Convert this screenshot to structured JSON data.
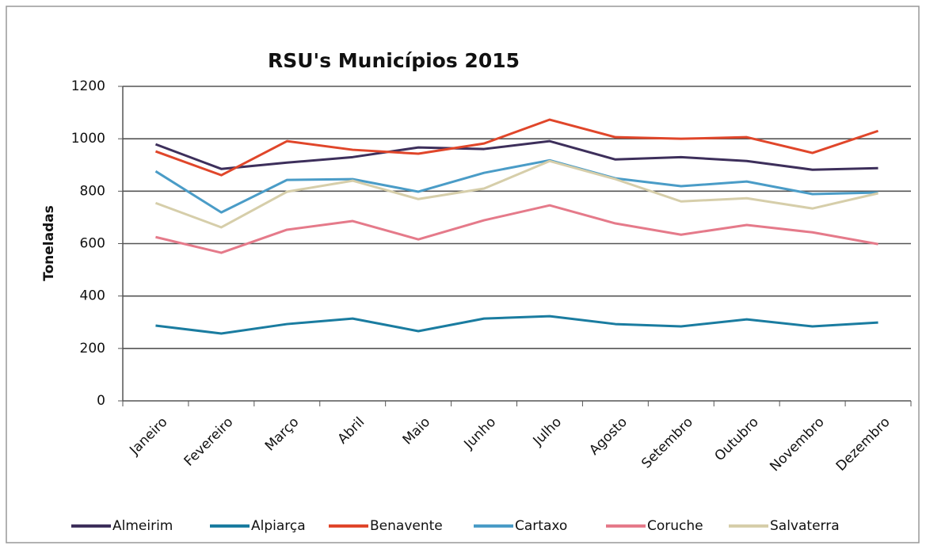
{
  "chart_data": {
    "type": "line",
    "title": "RSU's  Municípios 2015",
    "y_label": "Toneladas",
    "categories": [
      "Janeiro",
      "Fevereiro",
      "Março",
      "Abril",
      "Maio",
      "Junho",
      "Julho",
      "Agosto",
      "Setembro",
      "Outubro",
      "Novembro",
      "Dezembro"
    ],
    "series": [
      {
        "name": "Almeirim",
        "color": "#3d2f5b",
        "values": [
          979,
          885,
          909,
          930,
          967,
          961,
          991,
          921,
          930,
          915,
          882,
          888
        ]
      },
      {
        "name": "Alpiarça",
        "color": "#1a7ca0",
        "values": [
          287,
          257,
          293,
          314,
          266,
          314,
          323,
          293,
          284,
          311,
          284,
          299
        ]
      },
      {
        "name": "Benavente",
        "color": "#e0462a",
        "values": [
          952,
          861,
          991,
          958,
          943,
          982,
          1073,
          1006,
          1000,
          1006,
          946,
          1030
        ]
      },
      {
        "name": "Cartaxo",
        "color": "#4a9cc7",
        "values": [
          876,
          719,
          843,
          846,
          798,
          870,
          918,
          849,
          819,
          837,
          789,
          795
        ]
      },
      {
        "name": "Coruche",
        "color": "#e57a8a",
        "values": [
          625,
          565,
          653,
          686,
          616,
          689,
          746,
          677,
          634,
          671,
          643,
          598
        ]
      },
      {
        "name": "Salvaterra",
        "color": "#d6ceaa",
        "values": [
          755,
          662,
          798,
          840,
          770,
          810,
          915,
          846,
          761,
          773,
          734,
          792
        ]
      }
    ],
    "ylim": [
      0,
      1200
    ],
    "yticks": [
      0,
      200,
      400,
      600,
      800,
      1000,
      1200
    ],
    "grid": true,
    "legend": "bottom"
  }
}
